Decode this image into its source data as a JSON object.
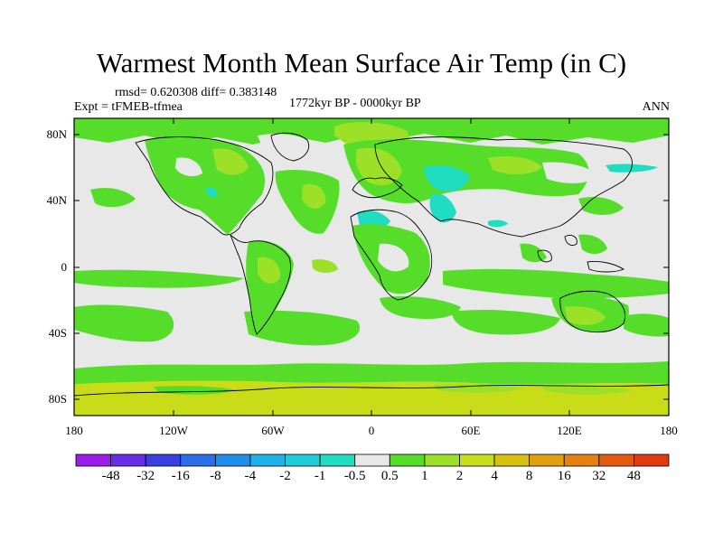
{
  "title": "Warmest Month Mean Surface Air Temp (in C)",
  "stats": "rmsd= 0.620308 diff= 0.383148",
  "period": "1772kyr BP - 0000kyr BP",
  "experiment": "Expt = tFMEB-tfmea",
  "season": "ANN",
  "lat_labels": [
    "80N",
    "40N",
    "0",
    "40S",
    "80S"
  ],
  "lon_labels": [
    "180",
    "120W",
    "60W",
    "0",
    "60E",
    "120E",
    "180"
  ],
  "colorbar": {
    "labels": [
      "-48",
      "-32",
      "-16",
      "-8",
      "-4",
      "-2",
      "-1",
      "-0.5",
      "0.5",
      "1",
      "2",
      "4",
      "8",
      "16",
      "32",
      "48"
    ],
    "colors": [
      "#9a1de8",
      "#6a2ee6",
      "#3a3fe0",
      "#2b6ee6",
      "#1e8ee8",
      "#1fb2e8",
      "#20ccd8",
      "#20dcc0",
      "#e8e8e8",
      "#55dd2a",
      "#9ce128",
      "#c8dc18",
      "#d8c010",
      "#e0a010",
      "#e28010",
      "#e25a10",
      "#e03a10"
    ]
  },
  "map": {
    "projection": "cylindrical equidistant",
    "lon_range": [
      -180,
      180
    ],
    "lat_range": [
      -90,
      90
    ],
    "background_color": "#e8e8e8"
  }
}
